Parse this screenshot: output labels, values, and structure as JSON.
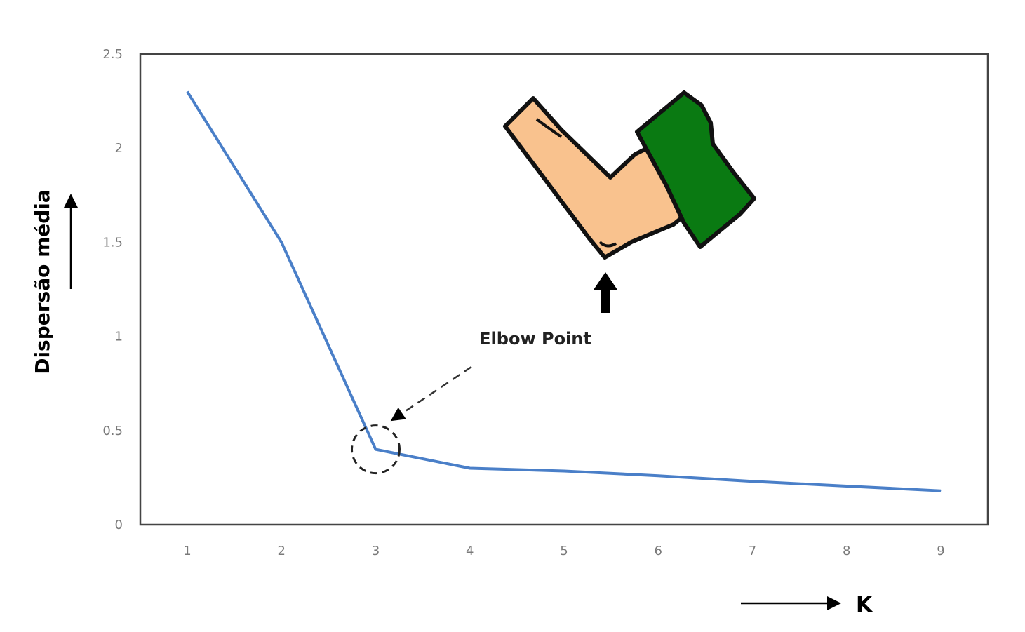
{
  "chart_data": {
    "type": "line",
    "xlabel": "K",
    "ylabel": "Dispersão média",
    "x": [
      1,
      2,
      3,
      4,
      5,
      6,
      7,
      8,
      9
    ],
    "series": [
      {
        "values": [
          2.3,
          1.5,
          0.4,
          0.3,
          0.285,
          0.26,
          0.23,
          0.205,
          0.18
        ]
      }
    ],
    "xticks": [
      "1",
      "2",
      "3",
      "4",
      "5",
      "6",
      "7",
      "8",
      "9"
    ],
    "yticks": [
      "0",
      "0.5",
      "1",
      "1.5",
      "2",
      "2.5"
    ],
    "ylim": [
      0,
      2.5
    ],
    "grid": false,
    "annotation": {
      "text": "Elbow Point",
      "x": 3,
      "y": 0.4
    },
    "colors": {
      "line": "#4a7fc8",
      "arm_skin": "#f9c28e",
      "sleeve": "#0a7a12"
    },
    "illustration": "elbow-arm-icon"
  }
}
